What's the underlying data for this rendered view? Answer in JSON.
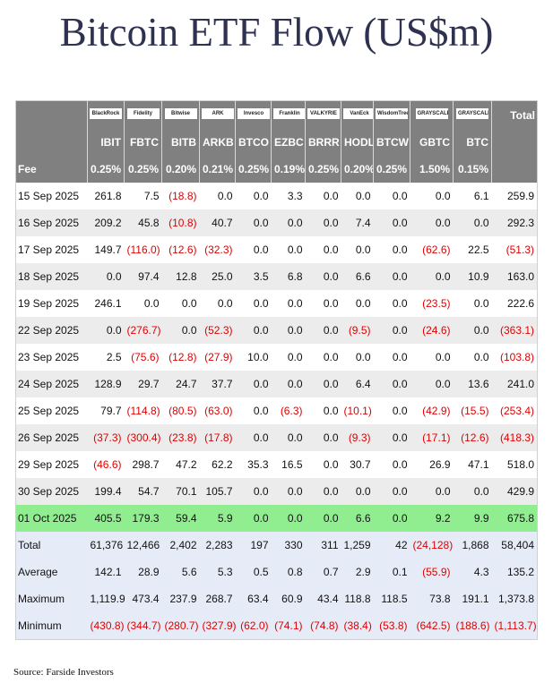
{
  "header": {
    "title": "Bitcoin ETF Flow (US$m)"
  },
  "table": {
    "logos": [
      "BlackRock",
      "Fidelity",
      "Bitwise",
      "ARK",
      "Invesco",
      "Franklin",
      "VALKYRIE",
      "VanEck",
      "WisdomTree",
      "GRAYSCALE",
      "GRAYSCALE"
    ],
    "total_header": "Total",
    "tickers": [
      "IBIT",
      "FBTC",
      "BITB",
      "ARKB",
      "BTCO",
      "EZBC",
      "BRRR",
      "HODL",
      "BTCW",
      "GBTC",
      "BTC"
    ],
    "fee": {
      "label": "Fee",
      "values": [
        "0.25%",
        "0.25%",
        "0.20%",
        "0.21%",
        "0.25%",
        "0.19%",
        "0.25%",
        "0.20%",
        "0.25%",
        "1.50%",
        "0.15%"
      ]
    },
    "rows": [
      {
        "date": "15 Sep 2025",
        "values": [
          "261.8",
          "7.5",
          "(18.8)",
          "0.0",
          "0.0",
          "3.3",
          "0.0",
          "0.0",
          "0.0",
          "0.0",
          "6.1",
          "259.9"
        ]
      },
      {
        "date": "16 Sep 2025",
        "values": [
          "209.2",
          "45.8",
          "(10.8)",
          "40.7",
          "0.0",
          "0.0",
          "0.0",
          "7.4",
          "0.0",
          "0.0",
          "0.0",
          "292.3"
        ]
      },
      {
        "date": "17 Sep 2025",
        "values": [
          "149.7",
          "(116.0)",
          "(12.6)",
          "(32.3)",
          "0.0",
          "0.0",
          "0.0",
          "0.0",
          "0.0",
          "(62.6)",
          "22.5",
          "(51.3)"
        ]
      },
      {
        "date": "18 Sep 2025",
        "values": [
          "0.0",
          "97.4",
          "12.8",
          "25.0",
          "3.5",
          "6.8",
          "0.0",
          "6.6",
          "0.0",
          "0.0",
          "10.9",
          "163.0"
        ]
      },
      {
        "date": "19 Sep 2025",
        "values": [
          "246.1",
          "0.0",
          "0.0",
          "0.0",
          "0.0",
          "0.0",
          "0.0",
          "0.0",
          "0.0",
          "(23.5)",
          "0.0",
          "222.6"
        ]
      },
      {
        "date": "22 Sep 2025",
        "values": [
          "0.0",
          "(276.7)",
          "0.0",
          "(52.3)",
          "0.0",
          "0.0",
          "0.0",
          "(9.5)",
          "0.0",
          "(24.6)",
          "0.0",
          "(363.1)"
        ]
      },
      {
        "date": "23 Sep 2025",
        "values": [
          "2.5",
          "(75.6)",
          "(12.8)",
          "(27.9)",
          "10.0",
          "0.0",
          "0.0",
          "0.0",
          "0.0",
          "0.0",
          "0.0",
          "(103.8)"
        ]
      },
      {
        "date": "24 Sep 2025",
        "values": [
          "128.9",
          "29.7",
          "24.7",
          "37.7",
          "0.0",
          "0.0",
          "0.0",
          "6.4",
          "0.0",
          "0.0",
          "13.6",
          "241.0"
        ]
      },
      {
        "date": "25 Sep 2025",
        "values": [
          "79.7",
          "(114.8)",
          "(80.5)",
          "(63.0)",
          "0.0",
          "(6.3)",
          "0.0",
          "(10.1)",
          "0.0",
          "(42.9)",
          "(15.5)",
          "(253.4)"
        ]
      },
      {
        "date": "26 Sep 2025",
        "values": [
          "(37.3)",
          "(300.4)",
          "(23.8)",
          "(17.8)",
          "0.0",
          "0.0",
          "0.0",
          "(9.3)",
          "0.0",
          "(17.1)",
          "(12.6)",
          "(418.3)"
        ]
      },
      {
        "date": "29 Sep 2025",
        "values": [
          "(46.6)",
          "298.7",
          "47.2",
          "62.2",
          "35.3",
          "16.5",
          "0.0",
          "30.7",
          "0.0",
          "26.9",
          "47.1",
          "518.0"
        ]
      },
      {
        "date": "30 Sep 2025",
        "values": [
          "199.4",
          "54.7",
          "70.1",
          "105.7",
          "0.0",
          "0.0",
          "0.0",
          "0.0",
          "0.0",
          "0.0",
          "0.0",
          "429.9"
        ]
      },
      {
        "date": "01 Oct 2025",
        "values": [
          "405.5",
          "179.3",
          "59.4",
          "5.9",
          "0.0",
          "0.0",
          "0.0",
          "6.6",
          "0.0",
          "9.2",
          "9.9",
          "675.8"
        ]
      }
    ],
    "summary": [
      {
        "label": "Total",
        "values": [
          "61,376",
          "12,466",
          "2,402",
          "2,283",
          "197",
          "330",
          "311",
          "1,259",
          "42",
          "(24,128)",
          "1,868",
          "58,404"
        ]
      },
      {
        "label": "Average",
        "values": [
          "142.1",
          "28.9",
          "5.6",
          "5.3",
          "0.5",
          "0.8",
          "0.7",
          "2.9",
          "0.1",
          "(55.9)",
          "4.3",
          "135.2"
        ]
      },
      {
        "label": "Maximum",
        "values": [
          "1,119.9",
          "473.4",
          "237.9",
          "268.7",
          "63.4",
          "60.9",
          "43.4",
          "118.8",
          "118.5",
          "73.8",
          "191.1",
          "1,373.8"
        ]
      },
      {
        "label": "Minimum",
        "values": [
          "(430.8)",
          "(344.7)",
          "(280.7)",
          "(327.9)",
          "(62.0)",
          "(74.1)",
          "(74.8)",
          "(38.4)",
          "(53.8)",
          "(642.5)",
          "(188.6)",
          "(1,113.7)"
        ]
      }
    ]
  },
  "footer": {
    "source": "Source: Farside Investors"
  }
}
